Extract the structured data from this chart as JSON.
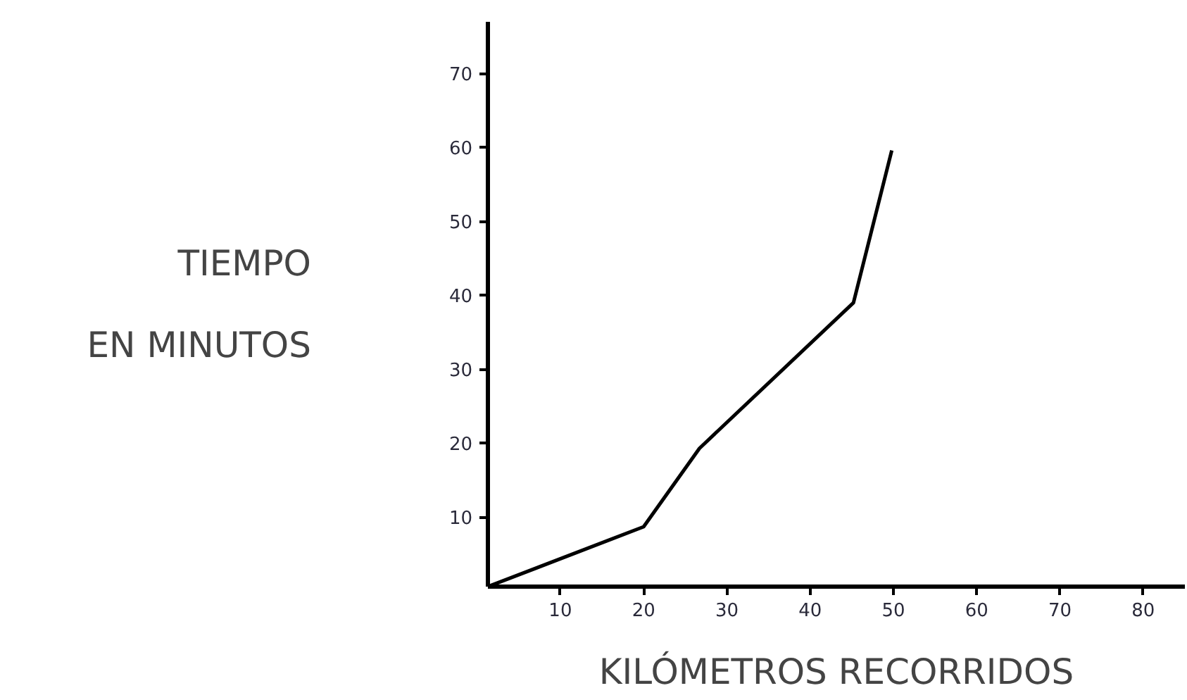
{
  "chart_data": {
    "type": "line",
    "xlabel": "KILÓMETROS RECORRIDOS",
    "ylabel": "TIEMPO\nEN MINUTOS",
    "x": [
      1.3,
      20,
      26.7,
      45.2,
      49.8
    ],
    "series": [
      {
        "color": "#000000",
        "values": [
          0.6,
          8.7,
          19.3,
          39,
          59.6
        ]
      }
    ],
    "xlim": [
      1.3,
      85
    ],
    "ylim": [
      0.6,
      77
    ],
    "xticks": [
      10,
      20,
      30,
      40,
      50,
      60,
      70,
      80
    ],
    "yticks": [
      10,
      20,
      30,
      40,
      50,
      60,
      70
    ],
    "grid": false,
    "marker": "none",
    "line_style": "solid"
  }
}
